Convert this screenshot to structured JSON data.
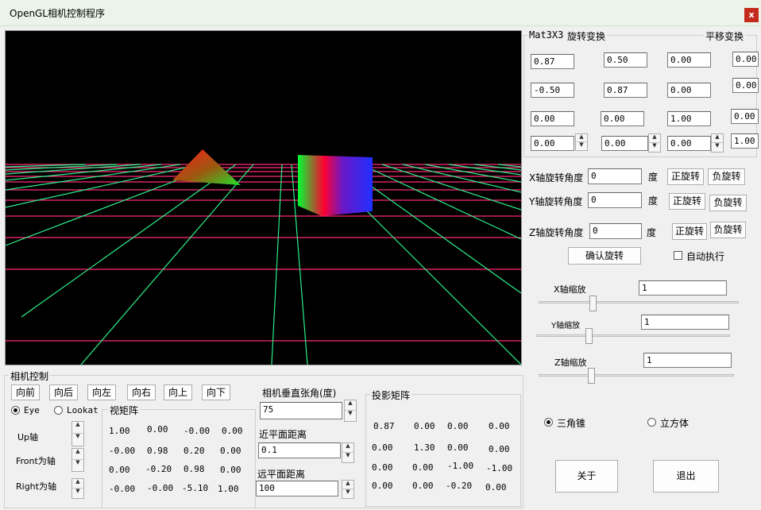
{
  "window": {
    "title": "OpenGL相机控制程序",
    "close_label": "x"
  },
  "transform": {
    "mat_label": "Mat3X3",
    "rotation_label": "旋转变换",
    "translation_label": "平移变换",
    "rows": [
      [
        "0.87",
        "0.50",
        "0.00"
      ],
      [
        "-0.50",
        "0.87",
        "0.00"
      ],
      [
        "0.00",
        "0.00",
        "1.00"
      ],
      [
        "0.00",
        "0.00",
        "0.00"
      ]
    ],
    "translation": [
      "0.00",
      "0.00",
      "0.00",
      "1.00"
    ]
  },
  "rotation": {
    "x_label": "X轴旋转角度",
    "x_value": "0",
    "y_label": "Y轴旋转角度",
    "y_value": "0",
    "z_label": "Z轴旋转角度",
    "z_value": "0",
    "unit": "度",
    "positive": "正旋转",
    "negative": "负旋转",
    "confirm": "确认旋转",
    "auto": "自动执行"
  },
  "scale": {
    "x_label": "X轴缩放",
    "x_value": "1",
    "x_level": 0.27,
    "y_label": "Y轴缩放",
    "y_value": "1",
    "y_level": 0.27,
    "z_label": "Z轴缩放",
    "z_value": "1",
    "z_level": 0.27
  },
  "shape": {
    "option1": "三角锥",
    "option2": "立方体",
    "selected": "三角锥"
  },
  "buttons": {
    "about": "关于",
    "exit": "退出"
  },
  "camera": {
    "group_label": "相机控制",
    "moves": [
      "向前",
      "向后",
      "向左",
      "向右",
      "向上",
      "向下"
    ],
    "eye": "Eye",
    "lookat": "Lookat",
    "up_axis": "Up轴",
    "front_axis": "Front为轴",
    "right_axis": "Right为轴",
    "view_matrix_label": "视矩阵",
    "view_matrix": [
      [
        "1.00",
        "0.00",
        "-0.00",
        "0.00"
      ],
      [
        "-0.00",
        "0.98",
        "0.20",
        "0.00"
      ],
      [
        "0.00",
        "-0.20",
        "0.98",
        "0.00"
      ],
      [
        "-0.00",
        "-0.00",
        "-5.10",
        "1.00"
      ]
    ],
    "fov_label": "相机垂直张角(度)",
    "fov_value": "75",
    "near_label": "近平面距离",
    "near_value": "0.1",
    "far_label": "远平面距离",
    "far_value": "100"
  },
  "projection": {
    "label": "投影矩阵",
    "matrix": [
      [
        "0.87",
        "0.00",
        "0.00",
        "0.00"
      ],
      [
        "0.00",
        "1.30",
        "0.00",
        "0.00"
      ],
      [
        "0.00",
        "0.00",
        "-1.00",
        "-1.00"
      ],
      [
        "0.00",
        "0.00",
        "-0.20",
        "0.00"
      ]
    ]
  },
  "colors": {
    "grid_pink": "#ff2a7a",
    "grid_green": "#2cf08a"
  }
}
